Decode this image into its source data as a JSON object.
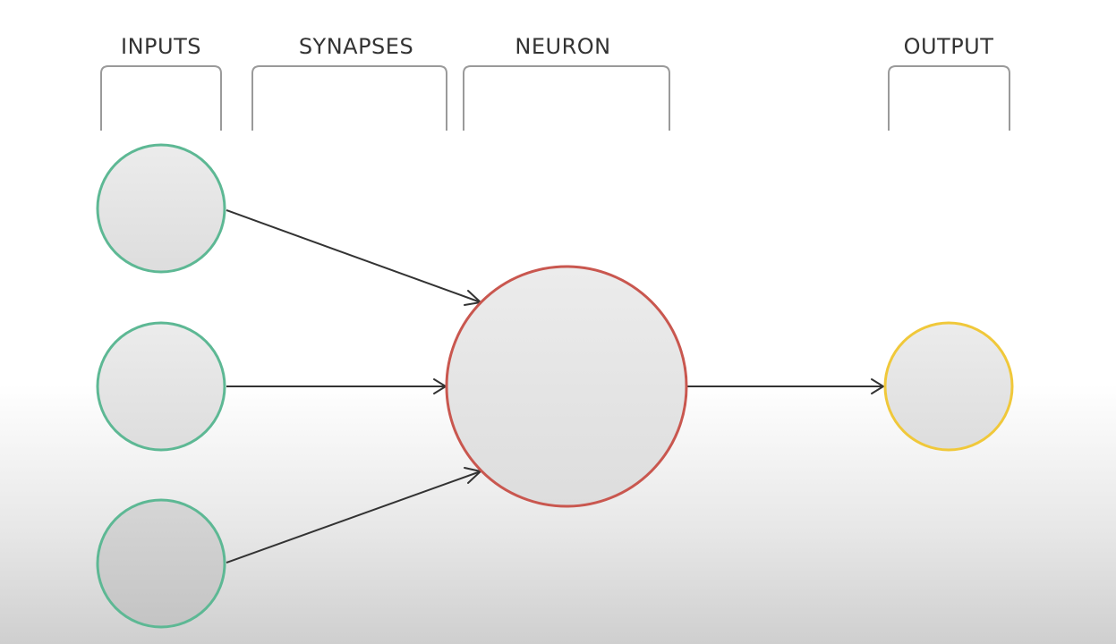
{
  "labels": {
    "inputs": "INPUTS",
    "synapses": "SYNAPSES",
    "neuron": "NEURON",
    "output": "OUTPUT"
  },
  "colors": {
    "input_stroke": "#5db894",
    "neuron_stroke": "#c9574f",
    "output_stroke": "#f0c83a",
    "node_fill": "#e8e8e8",
    "edge": "#333333",
    "bracket": "#9a9a9a"
  },
  "diagram": {
    "nodes": [
      {
        "id": "input-1",
        "role": "input"
      },
      {
        "id": "input-2",
        "role": "input"
      },
      {
        "id": "input-3",
        "role": "input"
      },
      {
        "id": "neuron",
        "role": "neuron"
      },
      {
        "id": "output",
        "role": "output"
      }
    ],
    "edges": [
      {
        "from": "input-1",
        "to": "neuron"
      },
      {
        "from": "input-2",
        "to": "neuron"
      },
      {
        "from": "input-3",
        "to": "neuron"
      },
      {
        "from": "neuron",
        "to": "output"
      }
    ]
  }
}
